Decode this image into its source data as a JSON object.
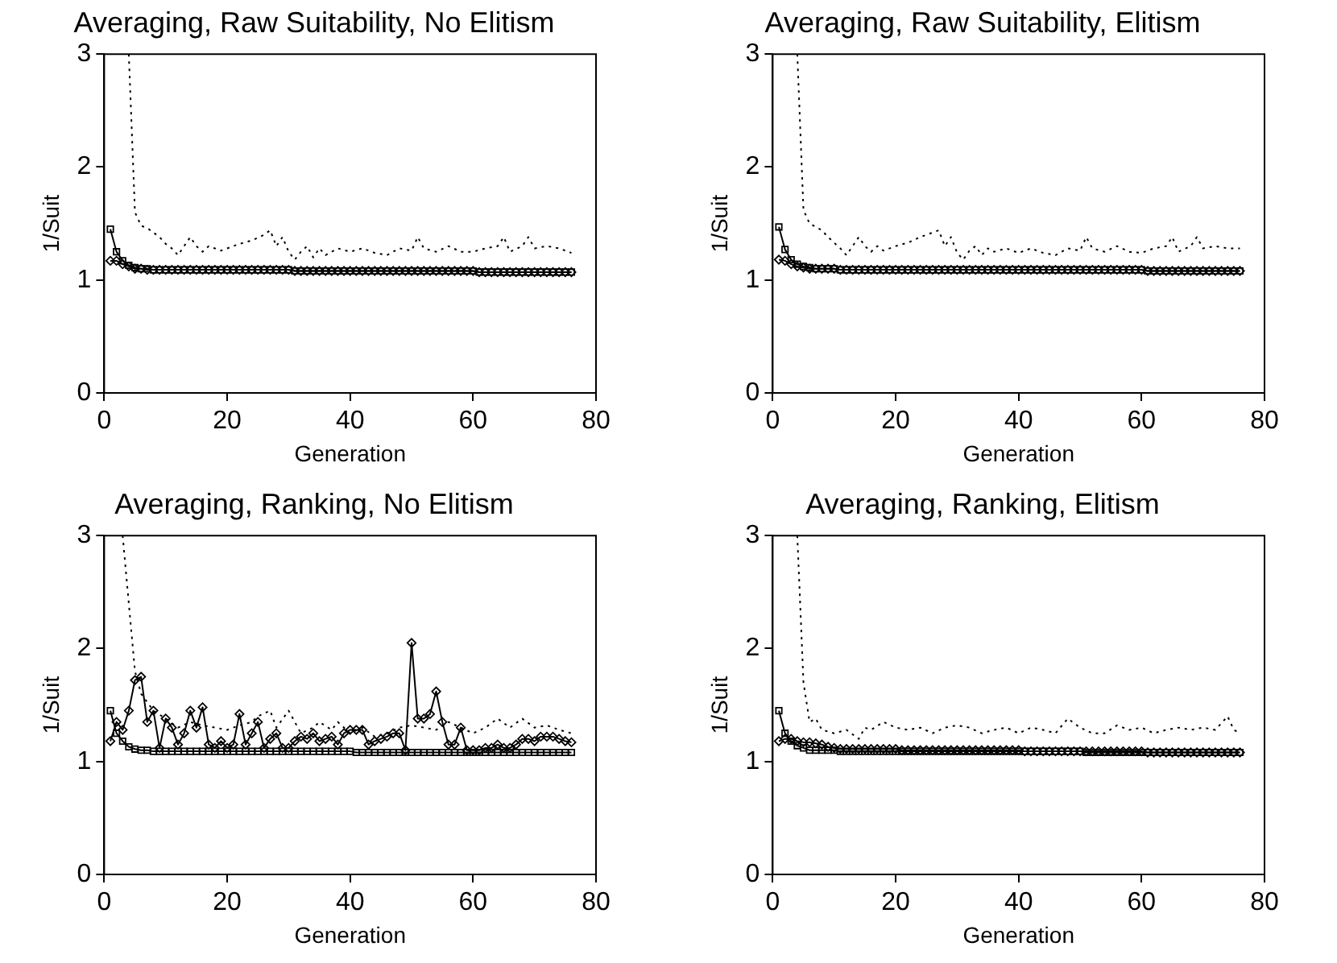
{
  "chart_data": [
    {
      "type": "line",
      "title": "Averaging, Raw Suitability, No Elitism",
      "xlabel": "Generation",
      "ylabel": "1/Suit",
      "xlim": [
        0,
        80
      ],
      "ylim": [
        0,
        3
      ],
      "xticks": [
        0,
        20,
        40,
        60,
        80
      ],
      "yticks": [
        0,
        1,
        2,
        3
      ],
      "grid": false,
      "legend": false,
      "x": [
        1,
        2,
        3,
        4,
        5,
        6,
        7,
        8,
        9,
        10,
        11,
        12,
        13,
        14,
        15,
        16,
        17,
        18,
        19,
        20,
        21,
        22,
        23,
        24,
        25,
        26,
        27,
        28,
        29,
        30,
        31,
        32,
        33,
        34,
        35,
        36,
        37,
        38,
        39,
        40,
        41,
        42,
        43,
        44,
        45,
        46,
        47,
        48,
        49,
        50,
        51,
        52,
        53,
        54,
        55,
        56,
        57,
        58,
        59,
        60,
        61,
        62,
        63,
        64,
        65,
        66,
        67,
        68,
        69,
        70,
        71,
        72,
        73,
        74,
        75,
        76
      ],
      "series": [
        {
          "color": "#000000",
          "marker": "none",
          "line_style": "dotted",
          "x": [
            4,
            5,
            6,
            7,
            8,
            9,
            10,
            11,
            12,
            13,
            14,
            15,
            16,
            17,
            18,
            19,
            20,
            22,
            24,
            26,
            27,
            28,
            29,
            30,
            31,
            32,
            33,
            34,
            35,
            36,
            38,
            40,
            42,
            44,
            46,
            48,
            50,
            51,
            52,
            54,
            56,
            58,
            60,
            62,
            64,
            65,
            66,
            68,
            69,
            70,
            72,
            74,
            76
          ],
          "values": [
            3.0,
            1.6,
            1.48,
            1.46,
            1.42,
            1.38,
            1.32,
            1.28,
            1.22,
            1.3,
            1.38,
            1.3,
            1.25,
            1.3,
            1.28,
            1.26,
            1.28,
            1.32,
            1.35,
            1.4,
            1.44,
            1.3,
            1.38,
            1.25,
            1.18,
            1.25,
            1.3,
            1.2,
            1.28,
            1.22,
            1.28,
            1.25,
            1.28,
            1.24,
            1.22,
            1.28,
            1.26,
            1.38,
            1.28,
            1.25,
            1.3,
            1.25,
            1.25,
            1.28,
            1.3,
            1.38,
            1.25,
            1.3,
            1.38,
            1.28,
            1.3,
            1.28,
            1.24
          ]
        },
        {
          "color": "#000000",
          "marker": "square",
          "line_style": "solid",
          "values": [
            1.45,
            1.25,
            1.17,
            1.13,
            1.11,
            1.1,
            1.1,
            1.09,
            1.09,
            1.09,
            1.09,
            1.09,
            1.09,
            1.09,
            1.09,
            1.09,
            1.09,
            1.09,
            1.09,
            1.09,
            1.09,
            1.09,
            1.09,
            1.09,
            1.09,
            1.09,
            1.09,
            1.09,
            1.09,
            1.09,
            1.08,
            1.08,
            1.08,
            1.08,
            1.08,
            1.08,
            1.08,
            1.08,
            1.08,
            1.08,
            1.08,
            1.08,
            1.08,
            1.08,
            1.08,
            1.08,
            1.08,
            1.08,
            1.08,
            1.08,
            1.08,
            1.08,
            1.08,
            1.08,
            1.08,
            1.08,
            1.08,
            1.08,
            1.08,
            1.08,
            1.07,
            1.07,
            1.07,
            1.07,
            1.07,
            1.07,
            1.07,
            1.07,
            1.07,
            1.07,
            1.07,
            1.07,
            1.07,
            1.07,
            1.07,
            1.07
          ]
        },
        {
          "color": "#000000",
          "marker": "diamond",
          "line_style": "solid",
          "values": [
            1.17,
            1.17,
            1.14,
            1.12,
            1.1,
            1.1,
            1.09,
            1.09,
            1.09,
            1.09,
            1.09,
            1.09,
            1.09,
            1.09,
            1.09,
            1.09,
            1.09,
            1.09,
            1.09,
            1.09,
            1.09,
            1.09,
            1.09,
            1.09,
            1.09,
            1.09,
            1.09,
            1.09,
            1.09,
            1.09,
            1.08,
            1.08,
            1.08,
            1.08,
            1.08,
            1.08,
            1.08,
            1.08,
            1.08,
            1.08,
            1.08,
            1.08,
            1.08,
            1.08,
            1.08,
            1.08,
            1.08,
            1.08,
            1.08,
            1.08,
            1.08,
            1.08,
            1.08,
            1.08,
            1.08,
            1.08,
            1.08,
            1.08,
            1.08,
            1.08,
            1.07,
            1.07,
            1.07,
            1.07,
            1.07,
            1.07,
            1.07,
            1.07,
            1.07,
            1.07,
            1.07,
            1.07,
            1.07,
            1.07,
            1.07,
            1.07
          ]
        }
      ]
    },
    {
      "type": "line",
      "title": "Averaging, Raw Suitability, Elitism",
      "xlabel": "Generation",
      "ylabel": "1/Suit",
      "xlim": [
        0,
        80
      ],
      "ylim": [
        0,
        3
      ],
      "xticks": [
        0,
        20,
        40,
        60,
        80
      ],
      "yticks": [
        0,
        1,
        2,
        3
      ],
      "grid": false,
      "legend": false,
      "x": [
        1,
        2,
        3,
        4,
        5,
        6,
        7,
        8,
        9,
        10,
        11,
        12,
        13,
        14,
        15,
        16,
        17,
        18,
        19,
        20,
        21,
        22,
        23,
        24,
        25,
        26,
        27,
        28,
        29,
        30,
        31,
        32,
        33,
        34,
        35,
        36,
        37,
        38,
        39,
        40,
        41,
        42,
        43,
        44,
        45,
        46,
        47,
        48,
        49,
        50,
        51,
        52,
        53,
        54,
        55,
        56,
        57,
        58,
        59,
        60,
        61,
        62,
        63,
        64,
        65,
        66,
        67,
        68,
        69,
        70,
        71,
        72,
        73,
        74,
        75,
        76
      ],
      "series": [
        {
          "color": "#000000",
          "marker": "none",
          "line_style": "dotted",
          "x": [
            4,
            5,
            6,
            7,
            8,
            9,
            10,
            11,
            12,
            13,
            14,
            15,
            16,
            17,
            18,
            20,
            22,
            24,
            26,
            27,
            28,
            29,
            30,
            31,
            32,
            33,
            34,
            35,
            36,
            38,
            40,
            42,
            44,
            46,
            48,
            50,
            51,
            52,
            54,
            56,
            58,
            60,
            62,
            64,
            65,
            66,
            68,
            69,
            70,
            72,
            74,
            76
          ],
          "values": [
            3.0,
            1.62,
            1.5,
            1.47,
            1.44,
            1.38,
            1.33,
            1.28,
            1.22,
            1.3,
            1.38,
            1.3,
            1.25,
            1.3,
            1.26,
            1.3,
            1.33,
            1.38,
            1.42,
            1.44,
            1.3,
            1.38,
            1.24,
            1.18,
            1.26,
            1.3,
            1.22,
            1.28,
            1.25,
            1.28,
            1.24,
            1.28,
            1.24,
            1.22,
            1.28,
            1.26,
            1.38,
            1.28,
            1.25,
            1.3,
            1.25,
            1.24,
            1.28,
            1.3,
            1.38,
            1.25,
            1.3,
            1.38,
            1.28,
            1.3,
            1.28,
            1.28
          ]
        },
        {
          "color": "#000000",
          "marker": "square",
          "line_style": "solid",
          "values": [
            1.47,
            1.27,
            1.18,
            1.14,
            1.12,
            1.11,
            1.1,
            1.1,
            1.1,
            1.1,
            1.09,
            1.09,
            1.09,
            1.09,
            1.09,
            1.09,
            1.09,
            1.09,
            1.09,
            1.09,
            1.09,
            1.09,
            1.09,
            1.09,
            1.09,
            1.09,
            1.09,
            1.09,
            1.09,
            1.09,
            1.09,
            1.09,
            1.09,
            1.09,
            1.09,
            1.09,
            1.09,
            1.09,
            1.09,
            1.09,
            1.09,
            1.09,
            1.09,
            1.09,
            1.09,
            1.09,
            1.09,
            1.09,
            1.09,
            1.09,
            1.09,
            1.09,
            1.09,
            1.09,
            1.09,
            1.09,
            1.09,
            1.09,
            1.09,
            1.09,
            1.08,
            1.08,
            1.08,
            1.08,
            1.08,
            1.08,
            1.08,
            1.08,
            1.08,
            1.08,
            1.08,
            1.08,
            1.08,
            1.08,
            1.08,
            1.08
          ]
        },
        {
          "color": "#000000",
          "marker": "diamond",
          "line_style": "solid",
          "values": [
            1.18,
            1.17,
            1.14,
            1.12,
            1.11,
            1.1,
            1.1,
            1.1,
            1.1,
            1.1,
            1.09,
            1.09,
            1.09,
            1.09,
            1.09,
            1.09,
            1.09,
            1.09,
            1.09,
            1.09,
            1.09,
            1.09,
            1.09,
            1.09,
            1.09,
            1.09,
            1.09,
            1.09,
            1.09,
            1.09,
            1.09,
            1.09,
            1.09,
            1.09,
            1.09,
            1.09,
            1.09,
            1.09,
            1.09,
            1.09,
            1.09,
            1.09,
            1.09,
            1.09,
            1.09,
            1.09,
            1.09,
            1.09,
            1.09,
            1.09,
            1.09,
            1.09,
            1.09,
            1.09,
            1.09,
            1.09,
            1.09,
            1.09,
            1.09,
            1.09,
            1.08,
            1.08,
            1.08,
            1.08,
            1.08,
            1.08,
            1.08,
            1.08,
            1.08,
            1.08,
            1.08,
            1.08,
            1.08,
            1.08,
            1.08,
            1.08
          ]
        }
      ]
    },
    {
      "type": "line",
      "title": "Averaging, Ranking, No Elitism",
      "xlabel": "Generation",
      "ylabel": "1/Suit",
      "xlim": [
        0,
        80
      ],
      "ylim": [
        0,
        3
      ],
      "xticks": [
        0,
        20,
        40,
        60,
        80
      ],
      "yticks": [
        0,
        1,
        2,
        3
      ],
      "grid": false,
      "legend": false,
      "x": [
        1,
        2,
        3,
        4,
        5,
        6,
        7,
        8,
        9,
        10,
        11,
        12,
        13,
        14,
        15,
        16,
        17,
        18,
        19,
        20,
        21,
        22,
        23,
        24,
        25,
        26,
        27,
        28,
        29,
        30,
        31,
        32,
        33,
        34,
        35,
        36,
        37,
        38,
        39,
        40,
        41,
        42,
        43,
        44,
        45,
        46,
        47,
        48,
        49,
        50,
        51,
        52,
        53,
        54,
        55,
        56,
        57,
        58,
        59,
        60,
        61,
        62,
        63,
        64,
        65,
        66,
        67,
        68,
        69,
        70,
        71,
        72,
        73,
        74,
        75,
        76
      ],
      "series": [
        {
          "color": "#000000",
          "marker": "none",
          "line_style": "dotted",
          "x": [
            3,
            4,
            5,
            6,
            8,
            10,
            12,
            14,
            16,
            18,
            20,
            22,
            24,
            25,
            27,
            28,
            30,
            32,
            34,
            35,
            37,
            38,
            40,
            42,
            44,
            46,
            48,
            50,
            52,
            54,
            56,
            58,
            60,
            62,
            64,
            66,
            68,
            70,
            72,
            74,
            76
          ],
          "values": [
            3.0,
            2.4,
            1.8,
            1.6,
            1.45,
            1.38,
            1.3,
            1.35,
            1.32,
            1.3,
            1.28,
            1.32,
            1.35,
            1.4,
            1.45,
            1.3,
            1.45,
            1.25,
            1.3,
            1.35,
            1.28,
            1.35,
            1.25,
            1.3,
            1.22,
            1.25,
            1.3,
            1.32,
            1.3,
            1.28,
            1.35,
            1.3,
            1.25,
            1.3,
            1.38,
            1.3,
            1.38,
            1.3,
            1.32,
            1.28,
            1.25
          ]
        },
        {
          "color": "#000000",
          "marker": "square",
          "line_style": "solid",
          "values": [
            1.45,
            1.25,
            1.18,
            1.13,
            1.11,
            1.1,
            1.1,
            1.09,
            1.09,
            1.09,
            1.09,
            1.09,
            1.09,
            1.09,
            1.09,
            1.09,
            1.09,
            1.09,
            1.09,
            1.09,
            1.09,
            1.09,
            1.09,
            1.09,
            1.09,
            1.09,
            1.09,
            1.09,
            1.09,
            1.09,
            1.09,
            1.09,
            1.09,
            1.09,
            1.09,
            1.09,
            1.09,
            1.09,
            1.09,
            1.09,
            1.08,
            1.08,
            1.08,
            1.08,
            1.08,
            1.08,
            1.08,
            1.08,
            1.08,
            1.08,
            1.08,
            1.08,
            1.08,
            1.08,
            1.08,
            1.08,
            1.08,
            1.08,
            1.08,
            1.08,
            1.08,
            1.08,
            1.08,
            1.08,
            1.08,
            1.08,
            1.08,
            1.08,
            1.08,
            1.08,
            1.08,
            1.08,
            1.08,
            1.08,
            1.08,
            1.08
          ]
        },
        {
          "color": "#000000",
          "marker": "diamond",
          "line_style": "solid",
          "values": [
            1.18,
            1.35,
            1.28,
            1.45,
            1.72,
            1.75,
            1.35,
            1.45,
            1.12,
            1.38,
            1.3,
            1.15,
            1.25,
            1.45,
            1.3,
            1.48,
            1.15,
            1.12,
            1.18,
            1.12,
            1.15,
            1.42,
            1.15,
            1.25,
            1.35,
            1.12,
            1.2,
            1.25,
            1.12,
            1.12,
            1.18,
            1.22,
            1.2,
            1.25,
            1.18,
            1.2,
            1.22,
            1.15,
            1.25,
            1.28,
            1.28,
            1.28,
            1.15,
            1.18,
            1.2,
            1.22,
            1.25,
            1.25,
            1.1,
            2.05,
            1.38,
            1.38,
            1.42,
            1.62,
            1.35,
            1.15,
            1.15,
            1.3,
            1.1,
            1.1,
            1.1,
            1.12,
            1.12,
            1.15,
            1.12,
            1.12,
            1.15,
            1.2,
            1.2,
            1.18,
            1.22,
            1.22,
            1.22,
            1.2,
            1.18,
            1.17
          ]
        }
      ]
    },
    {
      "type": "line",
      "title": "Averaging, Ranking, Elitism",
      "xlabel": "Generation",
      "ylabel": "1/Suit",
      "xlim": [
        0,
        80
      ],
      "ylim": [
        0,
        3
      ],
      "xticks": [
        0,
        20,
        40,
        60,
        80
      ],
      "yticks": [
        0,
        1,
        2,
        3
      ],
      "grid": false,
      "legend": false,
      "x": [
        1,
        2,
        3,
        4,
        5,
        6,
        7,
        8,
        9,
        10,
        11,
        12,
        13,
        14,
        15,
        16,
        17,
        18,
        19,
        20,
        21,
        22,
        23,
        24,
        25,
        26,
        27,
        28,
        29,
        30,
        31,
        32,
        33,
        34,
        35,
        36,
        37,
        38,
        39,
        40,
        41,
        42,
        43,
        44,
        45,
        46,
        47,
        48,
        49,
        50,
        51,
        52,
        53,
        54,
        55,
        56,
        57,
        58,
        59,
        60,
        61,
        62,
        63,
        64,
        65,
        66,
        67,
        68,
        69,
        70,
        71,
        72,
        73,
        74,
        75,
        76
      ],
      "series": [
        {
          "color": "#000000",
          "marker": "none",
          "line_style": "dotted",
          "x": [
            4,
            5,
            6,
            7,
            8,
            10,
            12,
            14,
            15,
            16,
            18,
            20,
            22,
            24,
            26,
            28,
            30,
            32,
            34,
            36,
            38,
            40,
            42,
            44,
            46,
            48,
            50,
            52,
            54,
            56,
            58,
            60,
            62,
            64,
            66,
            68,
            70,
            72,
            74,
            75,
            76
          ],
          "values": [
            3.0,
            1.7,
            1.35,
            1.38,
            1.28,
            1.25,
            1.28,
            1.2,
            1.3,
            1.28,
            1.35,
            1.3,
            1.28,
            1.3,
            1.25,
            1.3,
            1.32,
            1.3,
            1.25,
            1.28,
            1.3,
            1.25,
            1.3,
            1.28,
            1.25,
            1.38,
            1.3,
            1.25,
            1.25,
            1.32,
            1.28,
            1.3,
            1.25,
            1.28,
            1.3,
            1.28,
            1.3,
            1.28,
            1.4,
            1.28,
            1.25
          ]
        },
        {
          "color": "#000000",
          "marker": "square",
          "line_style": "solid",
          "values": [
            1.45,
            1.25,
            1.18,
            1.14,
            1.12,
            1.1,
            1.1,
            1.1,
            1.1,
            1.1,
            1.09,
            1.09,
            1.09,
            1.09,
            1.09,
            1.09,
            1.09,
            1.09,
            1.09,
            1.09,
            1.09,
            1.09,
            1.09,
            1.09,
            1.09,
            1.09,
            1.09,
            1.09,
            1.09,
            1.09,
            1.09,
            1.09,
            1.09,
            1.09,
            1.09,
            1.09,
            1.09,
            1.09,
            1.09,
            1.09,
            1.09,
            1.09,
            1.09,
            1.09,
            1.09,
            1.09,
            1.09,
            1.09,
            1.09,
            1.09,
            1.08,
            1.08,
            1.08,
            1.08,
            1.08,
            1.08,
            1.08,
            1.08,
            1.08,
            1.08,
            1.08,
            1.08,
            1.08,
            1.08,
            1.08,
            1.08,
            1.08,
            1.08,
            1.08,
            1.08,
            1.08,
            1.08,
            1.08,
            1.08,
            1.08,
            1.08
          ]
        },
        {
          "color": "#000000",
          "marker": "diamond",
          "line_style": "solid",
          "values": [
            1.18,
            1.2,
            1.2,
            1.18,
            1.17,
            1.17,
            1.16,
            1.15,
            1.13,
            1.12,
            1.11,
            1.11,
            1.11,
            1.11,
            1.11,
            1.11,
            1.11,
            1.11,
            1.11,
            1.11,
            1.1,
            1.1,
            1.1,
            1.1,
            1.1,
            1.1,
            1.1,
            1.1,
            1.1,
            1.1,
            1.1,
            1.1,
            1.1,
            1.1,
            1.1,
            1.1,
            1.1,
            1.1,
            1.1,
            1.1,
            1.09,
            1.09,
            1.09,
            1.09,
            1.09,
            1.09,
            1.09,
            1.09,
            1.09,
            1.09,
            1.09,
            1.09,
            1.09,
            1.09,
            1.09,
            1.09,
            1.09,
            1.09,
            1.09,
            1.09,
            1.08,
            1.08,
            1.08,
            1.08,
            1.08,
            1.08,
            1.08,
            1.08,
            1.08,
            1.08,
            1.08,
            1.08,
            1.08,
            1.08,
            1.08,
            1.08
          ]
        }
      ]
    }
  ]
}
